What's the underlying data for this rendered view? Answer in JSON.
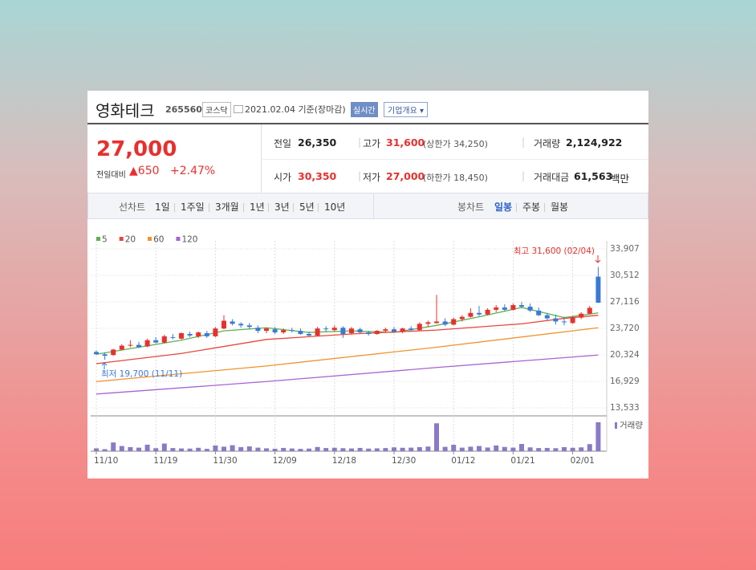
{
  "header": {
    "name": "영화테크",
    "code": "265560",
    "market": "코스닥",
    "date": "2021.02.04 기준(장마감)",
    "realtime": "실시간",
    "company_info": "기업개요"
  },
  "price": {
    "current": "27,000",
    "change_label": "전일대비",
    "change": "650",
    "change_rate": "+2.47%"
  },
  "stats": [
    {
      "label": "전일",
      "value": "26,350"
    },
    {
      "label": "고가",
      "value": "31,600",
      "note": "(상한가 34,250)"
    },
    {
      "label": "거래량",
      "value": "2,124,922"
    },
    {
      "label": "시가",
      "value": "30,350"
    },
    {
      "label": "저가",
      "value": "27,000",
      "note": "(하한가 18,450)"
    },
    {
      "label": "거래대금",
      "value": "61,563",
      "unit": "백만"
    }
  ],
  "tabs": {
    "line_label": "선차트",
    "line_periods": [
      "1일",
      "1주일",
      "3개월",
      "1년",
      "3년",
      "5년",
      "10년"
    ],
    "candle_label": "봉차트",
    "candle_periods": [
      "일봉",
      "주봉",
      "월봉"
    ]
  },
  "chart": {
    "type": "candlestick",
    "categories": [
      "11/10",
      null,
      null,
      null,
      null,
      null,
      null,
      "11/19",
      null,
      null,
      null,
      null,
      null,
      null,
      "11/30",
      null,
      null,
      null,
      null,
      null,
      null,
      "12/09",
      null,
      null,
      null,
      null,
      null,
      null,
      "12/18",
      null,
      null,
      null,
      null,
      null,
      null,
      "12/30",
      null,
      null,
      null,
      null,
      null,
      null,
      "01/12",
      null,
      null,
      null,
      null,
      null,
      null,
      "01/21",
      null,
      null,
      null,
      null,
      null,
      null,
      "02/01",
      null,
      null,
      null
    ],
    "ohlc": [
      [
        20700,
        20900,
        20300,
        20400
      ],
      [
        20400,
        20600,
        19700,
        20200
      ],
      [
        20300,
        21100,
        20200,
        21000
      ],
      [
        21000,
        21700,
        20900,
        21500
      ],
      [
        21500,
        22200,
        21300,
        21600
      ],
      [
        21600,
        22000,
        21200,
        21300
      ],
      [
        21400,
        22400,
        21300,
        22200
      ],
      [
        22200,
        22600,
        21800,
        21900
      ],
      [
        21900,
        22900,
        21800,
        22700
      ],
      [
        22600,
        23000,
        22300,
        22500
      ],
      [
        22400,
        23200,
        22300,
        23100
      ],
      [
        23000,
        23300,
        22600,
        22800
      ],
      [
        22700,
        23300,
        22500,
        23200
      ],
      [
        23100,
        23400,
        22500,
        22700
      ],
      [
        22700,
        23900,
        22600,
        23700
      ],
      [
        23700,
        25400,
        23600,
        24700
      ],
      [
        24600,
        24900,
        24100,
        24300
      ],
      [
        24300,
        24500,
        23800,
        24100
      ],
      [
        24100,
        24400,
        23600,
        23900
      ],
      [
        23800,
        24100,
        23100,
        23400
      ],
      [
        23400,
        23800,
        23100,
        23700
      ],
      [
        23600,
        23900,
        23000,
        23200
      ],
      [
        23200,
        23700,
        23000,
        23500
      ],
      [
        23500,
        23800,
        23200,
        23400
      ],
      [
        23400,
        23700,
        22900,
        23000
      ],
      [
        23000,
        23300,
        22700,
        22800
      ],
      [
        22800,
        23900,
        22700,
        23700
      ],
      [
        23700,
        24000,
        23300,
        23600
      ],
      [
        23500,
        24100,
        23300,
        23800
      ],
      [
        23800,
        24000,
        22500,
        23000
      ],
      [
        23100,
        23900,
        22900,
        23700
      ],
      [
        23600,
        23800,
        23100,
        23200
      ],
      [
        23200,
        23400,
        22800,
        23000
      ],
      [
        23000,
        23500,
        22900,
        23400
      ],
      [
        23400,
        23800,
        23200,
        23600
      ],
      [
        23600,
        23900,
        23200,
        23300
      ],
      [
        23300,
        23800,
        23100,
        23700
      ],
      [
        23700,
        24000,
        23300,
        23500
      ],
      [
        23500,
        24500,
        23400,
        24300
      ],
      [
        24300,
        24700,
        23900,
        24500
      ],
      [
        24400,
        28000,
        24300,
        24600
      ],
      [
        24600,
        25000,
        24000,
        24200
      ],
      [
        24200,
        25100,
        24100,
        24900
      ],
      [
        24900,
        25400,
        24600,
        25200
      ],
      [
        25200,
        26300,
        25100,
        25700
      ],
      [
        25700,
        26600,
        25300,
        25500
      ],
      [
        25500,
        26300,
        25400,
        26100
      ],
      [
        26100,
        26700,
        25800,
        26400
      ],
      [
        26400,
        26800,
        25900,
        26100
      ],
      [
        26100,
        26900,
        26000,
        26700
      ],
      [
        26700,
        27100,
        26300,
        26500
      ],
      [
        26500,
        26900,
        25800,
        26000
      ],
      [
        26000,
        26400,
        25300,
        25400
      ],
      [
        25400,
        25700,
        24800,
        25000
      ],
      [
        25000,
        25500,
        24200,
        24600
      ],
      [
        24600,
        25200,
        24100,
        24500
      ],
      [
        24400,
        25300,
        24300,
        25100
      ],
      [
        25100,
        25800,
        24900,
        25600
      ],
      [
        25600,
        26600,
        25500,
        26350
      ],
      [
        30350,
        31600,
        27000,
        27000
      ]
    ],
    "rise_color": "#e8302e",
    "fall_color": "#3a79d6",
    "series": [
      {
        "name": "5",
        "color": "#5db14e",
        "x": [
          0,
          5,
          10,
          15,
          20,
          25,
          30,
          35,
          40,
          45,
          50,
          55,
          59
        ],
        "values": [
          20400,
          21300,
          22200,
          23400,
          23800,
          23200,
          23400,
          23200,
          24100,
          25200,
          26400,
          25100,
          25700
        ]
      },
      {
        "name": "20",
        "color": "#e5473c",
        "x": [
          0,
          10,
          20,
          30,
          40,
          50,
          55,
          59
        ],
        "values": [
          19200,
          20500,
          22300,
          23000,
          23500,
          24300,
          25000,
          25400
        ]
      },
      {
        "name": "60",
        "color": "#f0922c",
        "x": [
          0,
          20,
          40,
          59
        ],
        "values": [
          16900,
          18900,
          21300,
          23800
        ]
      },
      {
        "name": "120",
        "color": "#a763d3",
        "x": [
          0,
          20,
          40,
          59
        ],
        "values": [
          15300,
          16900,
          18700,
          20300
        ]
      }
    ],
    "volume": {
      "name": "거래량",
      "color": "#8b79c9",
      "values": [
        210000,
        150000,
        640000,
        380000,
        300000,
        260000,
        480000,
        220000,
        560000,
        230000,
        200000,
        190000,
        250000,
        170000,
        420000,
        330000,
        440000,
        300000,
        350000,
        260000,
        210000,
        180000,
        240000,
        200000,
        170000,
        190000,
        310000,
        230000,
        250000,
        220000,
        200000,
        240000,
        190000,
        210000,
        230000,
        280000,
        250000,
        260000,
        300000,
        340000,
        2050000,
        320000,
        470000,
        260000,
        330000,
        380000,
        270000,
        420000,
        310000,
        260000,
        530000,
        280000,
        230000,
        240000,
        220000,
        300000,
        250000,
        280000,
        520000,
        2124922
      ]
    },
    "ylim": [
      13533,
      33907
    ],
    "yticks": [
      {
        "value": 33907,
        "label": "33,907"
      },
      {
        "value": 30512,
        "label": "30,512"
      },
      {
        "value": 27116,
        "label": "27,116"
      },
      {
        "value": 23720,
        "label": "23,720"
      },
      {
        "value": 20324,
        "label": "20,324"
      },
      {
        "value": 16929,
        "label": "16,929"
      },
      {
        "value": 13533,
        "label": "13,533"
      }
    ],
    "grid": true,
    "high_label": "최고 31,600 (02/04)",
    "low_label": "최저 19,700 (11/11)"
  }
}
